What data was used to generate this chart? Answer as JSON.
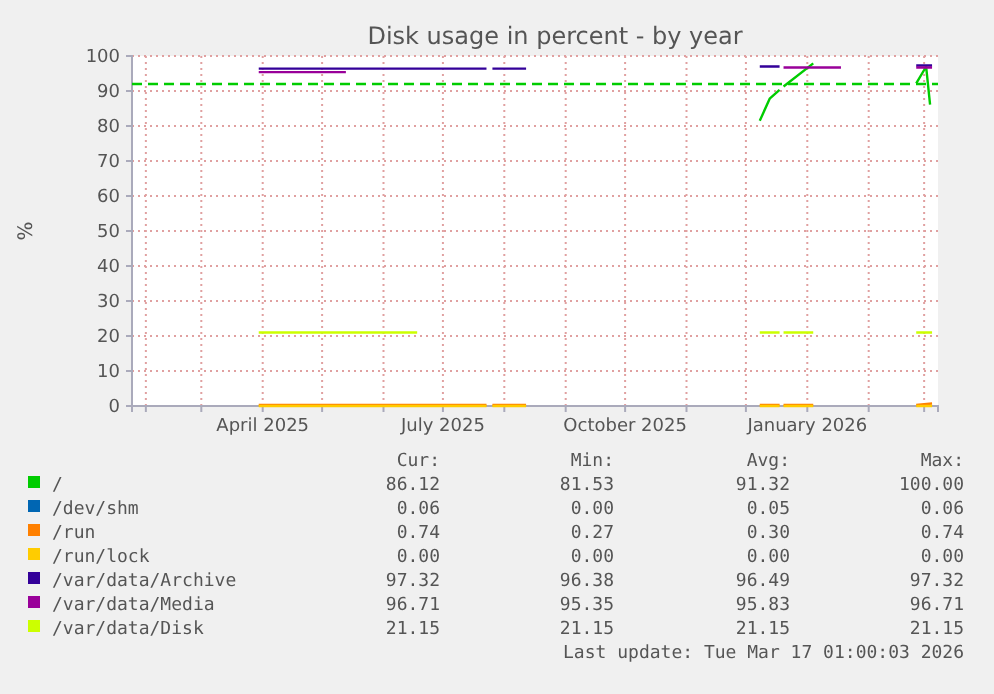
{
  "chart_data": {
    "type": "line",
    "title": "Disk usage in percent - by year",
    "ylabel": "%",
    "xlim": [
      "2025-01-25",
      "2026-03-08"
    ],
    "ylim": [
      0,
      100
    ],
    "xticks": [
      {
        "value": "2025-02-01",
        "label": null
      },
      {
        "value": "2025-03-01",
        "label": null
      },
      {
        "value": "2025-04-01",
        "label": "April 2025"
      },
      {
        "value": "2025-05-01",
        "label": null
      },
      {
        "value": "2025-06-01",
        "label": null
      },
      {
        "value": "2025-07-01",
        "label": "July 2025"
      },
      {
        "value": "2025-08-01",
        "label": null
      },
      {
        "value": "2025-09-01",
        "label": null
      },
      {
        "value": "2025-10-01",
        "label": "October 2025"
      },
      {
        "value": "2025-11-01",
        "label": null
      },
      {
        "value": "2025-12-01",
        "label": null
      },
      {
        "value": "2026-01-01",
        "label": "January 2026"
      },
      {
        "value": "2026-02-01",
        "label": null
      },
      {
        "value": "2026-03-01",
        "label": null
      }
    ],
    "yticks": [
      0,
      10,
      20,
      30,
      40,
      50,
      60,
      70,
      80,
      90,
      100
    ],
    "grid": true,
    "legend": "bottom",
    "marker": "none",
    "line_style": "solid",
    "ref_lines": [
      {
        "axis": "y",
        "value": 92,
        "label": null,
        "color": "#00cc00",
        "line_style": "dashed"
      }
    ],
    "series": [
      {
        "name": "/",
        "color": "#00cc00",
        "x": [
          "2025-12-08",
          "2025-12-13",
          "2025-12-18",
          "2025-12-19",
          "2025-12-20",
          "2026-01-04",
          "2026-01-05",
          "2026-02-25",
          "2026-03-01",
          "2026-03-02",
          "2026-03-04"
        ],
        "values": [
          81.5,
          87.8,
          90.3,
          null,
          91.3,
          97.9,
          null,
          92.2,
          96,
          97,
          86.1
        ]
      },
      {
        "name": "/dev/shm",
        "color": "#0066b3"
      },
      {
        "name": "/run",
        "color": "#ff8000",
        "x": [
          "2025-03-30",
          "2025-07-23",
          "2025-07-24",
          "2025-07-26",
          "2025-08-12",
          "2025-08-13",
          "2025-12-08",
          "2025-12-18",
          "2025-12-19",
          "2025-12-20",
          "2026-01-04",
          "2026-01-05",
          "2026-02-25",
          "2026-03-05"
        ],
        "values": [
          0.3,
          0.3,
          null,
          0.3,
          0.3,
          null,
          0.3,
          0.3,
          null,
          0.3,
          0.3,
          null,
          0.3,
          0.7
        ]
      },
      {
        "name": "/run/lock",
        "color": "#ffcc00",
        "x": [
          "2025-03-30",
          "2025-07-23",
          "2025-07-24",
          "2025-07-26",
          "2025-08-12",
          "2025-08-13",
          "2025-12-08",
          "2025-12-18",
          "2025-12-19",
          "2025-12-20",
          "2026-01-04",
          "2026-01-05",
          "2026-02-25",
          "2026-03-05"
        ],
        "values": [
          0,
          0,
          null,
          0,
          0,
          null,
          0,
          0,
          null,
          0,
          0,
          null,
          0,
          0
        ]
      },
      {
        "name": "/var/data/Archive",
        "color": "#330099",
        "x": [
          "2025-03-30",
          "2025-07-23",
          "2025-07-24",
          "2025-07-26",
          "2025-08-12",
          "2025-08-13",
          "2025-12-08",
          "2025-12-18",
          "2025-12-19",
          "2026-02-25",
          "2026-03-05"
        ],
        "values": [
          96.4,
          96.4,
          null,
          96.4,
          96.4,
          null,
          97,
          97,
          null,
          97.3,
          97.3
        ]
      },
      {
        "name": "/var/data/Media",
        "color": "#990099",
        "x": [
          "2025-03-30",
          "2025-05-13",
          "2025-05-14",
          "2025-12-20",
          "2026-01-18",
          "2026-01-19",
          "2026-02-25",
          "2026-03-05"
        ],
        "values": [
          95.4,
          95.4,
          null,
          96.7,
          96.7,
          null,
          96.7,
          96.7
        ]
      },
      {
        "name": "/var/data/Disk",
        "color": "#ccff00",
        "x": [
          "2025-03-30",
          "2025-06-18",
          "2025-06-19",
          "2025-12-08",
          "2025-12-18",
          "2025-12-19",
          "2025-12-20",
          "2026-01-04",
          "2026-01-05",
          "2026-02-25",
          "2026-03-05"
        ],
        "values": [
          21,
          21,
          null,
          21,
          21,
          null,
          21,
          21,
          null,
          21,
          21
        ]
      }
    ],
    "annotations": [
      "Cur: Min: Avg: Max:",
      "86.12 81.53 91.32 100.00",
      "0.06 0.00 0.05 0.06",
      "0.74 0.27 0.30 0.74",
      "0.00 0.00 0.00 0.00",
      "97.32 96.38 96.49 97.32",
      "96.71 95.35 95.83 96.71",
      "21.15 21.15 21.15 21.15",
      "Last update: Tue Mar 17 01:00:03 2026"
    ]
  }
}
